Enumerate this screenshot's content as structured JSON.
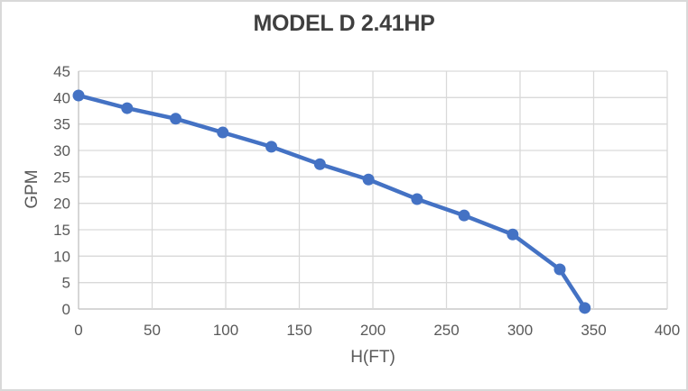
{
  "window": {
    "background": "#ffffff",
    "frame_border_color": "#d9d9d9"
  },
  "chart_data": {
    "type": "line",
    "title": "MODEL D 2.41HP",
    "xlabel": "H(FT)",
    "ylabel": "GPM",
    "xlim": [
      0,
      400
    ],
    "ylim": [
      0,
      45
    ],
    "xticks": [
      0,
      50,
      100,
      150,
      200,
      250,
      300,
      350,
      400
    ],
    "yticks": [
      0,
      5,
      10,
      15,
      20,
      25,
      30,
      35,
      40,
      45
    ],
    "grid": true,
    "legend_position": "none",
    "colors": {
      "series": "#4472c4",
      "gridline": "#d9d9d9",
      "axis_line": "#bfbfbf",
      "tick_label": "#595959",
      "title": "#3f3f3f"
    },
    "series": [
      {
        "name": "MODEL D 2.41HP",
        "marker": "circle",
        "line_style": "solid",
        "points": [
          [
            0,
            40.4
          ],
          [
            33,
            38.0
          ],
          [
            66,
            36.0
          ],
          [
            98,
            33.4
          ],
          [
            131,
            30.7
          ],
          [
            164,
            27.4
          ],
          [
            197,
            24.5
          ],
          [
            230,
            20.8
          ],
          [
            262,
            17.7
          ],
          [
            295,
            14.1
          ],
          [
            327,
            7.5
          ],
          [
            344,
            0.2
          ]
        ]
      }
    ]
  }
}
